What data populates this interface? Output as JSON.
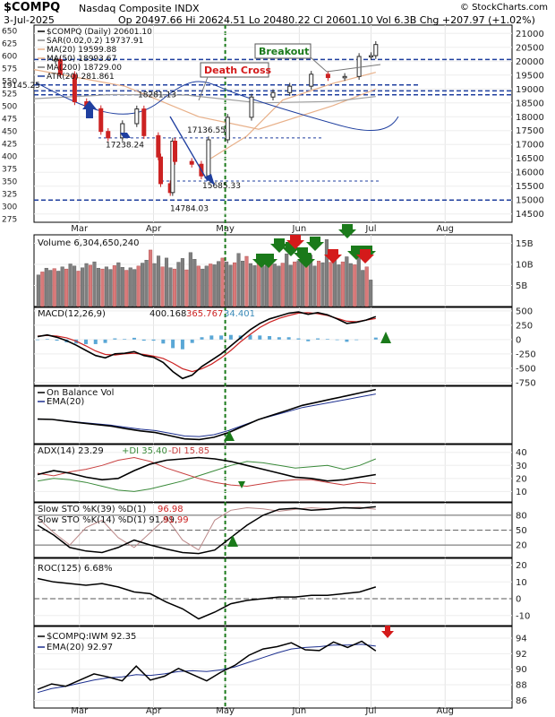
{
  "header": {
    "symbol": "$COMPQ",
    "name": "Nasdaq Composite INDX",
    "brand": "© StockCharts.com",
    "date": "3-Jul-2025",
    "ohlc": "Op 20497.66  Hi 20624.51  Lo 20480.22  Cl 20601.10  Vol 6.3B  Chg +207.97 (+1.02%)"
  },
  "colors": {
    "up": "#2b2b2b",
    "down": "#cc2222",
    "volup": "#7f7f7f",
    "voldown": "#d87a7a",
    "ma50": "#e8b089",
    "ma200": "#a0a0a0",
    "atr": "#1f3f9f",
    "blue": "#1f3f9f",
    "red": "#d41a1a",
    "green": "#1a7a1a",
    "macdhist": "#5aa7d6",
    "adxgreen": "#3a8a3a",
    "adxred": "#c84040"
  },
  "x_axis": [
    "Mar",
    "Apr",
    "May",
    "Jun",
    "Jul",
    "Aug"
  ],
  "price_panel": {
    "legend": [
      "$COMPQ (Daily) 20601.10",
      "SAR(0.02,0.2) 19737.91",
      "MA(20) 19599.88",
      "MA(50) 18993.67",
      "MA(200) 18729.00",
      "ATR(20) 281.861"
    ],
    "right_ticks": [
      "21000",
      "20500",
      "20000",
      "19500",
      "19000",
      "18500",
      "18000",
      "17500",
      "17000",
      "16500",
      "16000",
      "15500",
      "15000",
      "14500"
    ],
    "left_ticks": [
      "650",
      "625",
      "600",
      "575",
      "550",
      "525",
      "500",
      "475",
      "450",
      "425",
      "400",
      "375",
      "350",
      "325",
      "300",
      "275"
    ],
    "price_labels": [
      "19145.25",
      "18281.13",
      "17238.24",
      "17136.55",
      "15685.33",
      "14784.03"
    ],
    "annotations": [
      "Breakout",
      "Death Cross"
    ]
  },
  "volume_panel": {
    "legend": "Volume 6,304,650,240",
    "ticks": [
      "15B",
      "10B",
      "5B"
    ]
  },
  "macd_panel": {
    "legend_prefix": "MACD(12,26,9) ",
    "v1": "400.168",
    "v2": "365.767",
    "v3": "34.401",
    "ticks": [
      "500",
      "250",
      "0",
      "-250",
      "-500",
      "-750"
    ]
  },
  "obv_panel": {
    "legend1": "On Balance Vol",
    "legend2": "EMA(20)"
  },
  "adx_panel": {
    "legend_prefix": "ADX(14) 23.29 ",
    "plus": "+DI 35.40",
    "minus": "-DI 15.85",
    "ticks": [
      "40",
      "30",
      "20",
      "10"
    ]
  },
  "sto_panel": {
    "legend1_prefix": "Slow STO %K(39) %D(1) ",
    "legend1_val": "96.98",
    "legend2_prefix": "Slow STO %K(14) %D(1) 91.99, ",
    "legend2_val": "91.99",
    "ticks": [
      "80",
      "50",
      "20"
    ]
  },
  "roc_panel": {
    "legend": "ROC(125) 6.68%",
    "ticks": [
      "20",
      "10",
      "0",
      "-10"
    ]
  },
  "ratio_panel": {
    "legend1": "$COMPQ:IWM 92.35",
    "legend2": "EMA(20) 92.97",
    "ticks": [
      "94",
      "92",
      "90",
      "88",
      "86"
    ]
  },
  "chart_data": {
    "type": "line",
    "title": "$COMPQ (Daily) 20601.10",
    "x_range": [
      "2025-02-10",
      "2025-08-29"
    ],
    "ylim": [
      14200,
      21300
    ],
    "close_points": [
      [
        "2025-02-14",
        20020
      ],
      [
        "2025-02-19",
        20060
      ],
      [
        "2025-02-21",
        19520
      ],
      [
        "2025-02-27",
        18540
      ],
      [
        "2025-03-04",
        18290
      ],
      [
        "2025-03-10",
        17470
      ],
      [
        "2025-03-13",
        17240
      ],
      [
        "2025-03-19",
        17750
      ],
      [
        "2025-03-25",
        18280
      ],
      [
        "2025-03-28",
        17320
      ],
      [
        "2025-04-03",
        16550
      ],
      [
        "2025-04-04",
        15590
      ],
      [
        "2025-04-08",
        15270
      ],
      [
        "2025-04-09",
        17120
      ],
      [
        "2025-04-10",
        16390
      ],
      [
        "2025-04-17",
        16290
      ],
      [
        "2025-04-21",
        15870
      ],
      [
        "2025-04-24",
        17170
      ],
      [
        "2025-05-02",
        17980
      ],
      [
        "2025-05-12",
        18710
      ],
      [
        "2025-05-21",
        18870
      ],
      [
        "2025-05-28",
        19100
      ],
      [
        "2025-06-06",
        19530
      ],
      [
        "2025-06-13",
        19410
      ],
      [
        "2025-06-20",
        19450
      ],
      [
        "2025-06-26",
        20170
      ],
      [
        "2025-07-01",
        20200
      ],
      [
        "2025-07-03",
        20601
      ]
    ],
    "series": [
      {
        "name": "MA(50)",
        "points": [
          [
            "2025-02-10",
            19700
          ],
          [
            "2025-03-20",
            19100
          ],
          [
            "2025-04-20",
            18000
          ],
          [
            "2025-05-15",
            17550
          ],
          [
            "2025-06-15",
            18400
          ],
          [
            "2025-07-03",
            18994
          ]
        ]
      },
      {
        "name": "MA(200)",
        "points": [
          [
            "2025-02-10",
            18650
          ],
          [
            "2025-03-15",
            18800
          ],
          [
            "2025-04-15",
            18780
          ],
          [
            "2025-05-15",
            18500
          ],
          [
            "2025-06-15",
            18550
          ],
          [
            "2025-07-03",
            18729
          ]
        ]
      },
      {
        "name": "MA(20)",
        "points": [
          [
            "2025-04-25",
            16500
          ],
          [
            "2025-05-10",
            17300
          ],
          [
            "2025-05-25",
            18600
          ],
          [
            "2025-06-15",
            19200
          ],
          [
            "2025-07-03",
            19600
          ]
        ]
      }
    ],
    "volume_billions": [
      7.5,
      8.2,
      9.1,
      8.6,
      9.0,
      8.4,
      9.4,
      8.9,
      10.1,
      9.6,
      8.4,
      9.2,
      10.2,
      9.8,
      10.6,
      9.1,
      8.9,
      9.4,
      8.8,
      9.7,
      10.4,
      9.3,
      8.6,
      9.2,
      8.8,
      9.6,
      10.3,
      11.0,
      13.4,
      10.2,
      12.0,
      9.4,
      11.5,
      9.2,
      8.9,
      10.5,
      11.4,
      8.7,
      12.8,
      11.2,
      9.6,
      8.9,
      9.6,
      10.1,
      9.9,
      10.7,
      11.5,
      10.6,
      9.8,
      10.4,
      12.6,
      10.8,
      11.9,
      10.2,
      9.7,
      10.4,
      9.6,
      10.8,
      11.2,
      10.1,
      9.6,
      10.3,
      12.5,
      9.8,
      10.6,
      10.9,
      11.4,
      10.2,
      12.2,
      9.6,
      10.8,
      10.4,
      15.9,
      10.5,
      11.2,
      9.9,
      10.6,
      11.8,
      10.2,
      9.9,
      12.0,
      8.6,
      9.4,
      6.3
    ],
    "macd": [
      50,
      80,
      40,
      -20,
      -100,
      -190,
      -280,
      -320,
      -250,
      -240,
      -210,
      -280,
      -310,
      -400,
      -560,
      -680,
      -620,
      -470,
      -360,
      -250,
      -110,
      30,
      170,
      280,
      360,
      410,
      460,
      480,
      440,
      470,
      430,
      360,
      280,
      300,
      340,
      400
    ],
    "macd_signal": [
      60,
      70,
      60,
      30,
      -30,
      -110,
      -200,
      -260,
      -270,
      -250,
      -240,
      -260,
      -290,
      -330,
      -410,
      -510,
      -560,
      -510,
      -430,
      -320,
      -190,
      -40,
      90,
      210,
      300,
      370,
      420,
      460,
      470,
      450,
      420,
      370,
      320,
      310,
      340,
      366
    ],
    "obv": [
      0.02,
      0.01,
      -0.05,
      -0.1,
      -0.15,
      -0.2,
      -0.28,
      -0.35,
      -0.4,
      -0.5,
      -0.6,
      -0.62,
      -0.55,
      -0.4,
      -0.2,
      0,
      0.15,
      0.3,
      0.45,
      0.55,
      0.65,
      0.75,
      0.85,
      0.95
    ],
    "adx": [
      23,
      26,
      24,
      21,
      19,
      20,
      26,
      31,
      34,
      35,
      36,
      35,
      33,
      30,
      27,
      24,
      21,
      20,
      18,
      19,
      21,
      23
    ],
    "plus_di": [
      18,
      20,
      19,
      17,
      14,
      11,
      10,
      12,
      15,
      18,
      22,
      26,
      30,
      33,
      32,
      30,
      28,
      29,
      30,
      27,
      30,
      35
    ],
    "minus_di": [
      24,
      22,
      25,
      27,
      30,
      34,
      36,
      33,
      28,
      24,
      20,
      17,
      15,
      14,
      16,
      18,
      19,
      19,
      17,
      15,
      17,
      16
    ],
    "sto39": [
      60,
      40,
      15,
      8,
      5,
      15,
      30,
      20,
      12,
      5,
      3,
      10,
      35,
      60,
      80,
      92,
      94,
      90,
      92,
      95,
      94,
      97
    ],
    "sto14": [
      75,
      45,
      20,
      55,
      70,
      35,
      15,
      45,
      75,
      30,
      10,
      70,
      90,
      95,
      93,
      88,
      92,
      95,
      93,
      95,
      96,
      92
    ],
    "roc": [
      12,
      10,
      9,
      8,
      9,
      7,
      4,
      3,
      -2,
      -6,
      -12,
      -8,
      -3,
      -1,
      0,
      1,
      1,
      2,
      2,
      3,
      4,
      7
    ],
    "ratio": [
      87.4,
      88.1,
      87.8,
      88.6,
      89.4,
      89.0,
      88.5,
      90.4,
      88.6,
      89.1,
      90.1,
      89.3,
      88.5,
      89.6,
      90.5,
      91.8,
      92.6,
      92.9,
      93.4,
      92.5,
      92.4,
      93.5,
      92.8,
      93.6,
      92.35
    ],
    "ratio_ema": [
      87.0,
      87.5,
      87.8,
      88.2,
      88.6,
      88.9,
      89.0,
      89.3,
      89.2,
      89.4,
      89.7,
      89.8,
      89.7,
      89.9,
      90.3,
      90.9,
      91.5,
      92.1,
      92.6,
      92.8,
      92.9,
      93.1,
      93.1,
      93.2,
      92.97
    ]
  }
}
